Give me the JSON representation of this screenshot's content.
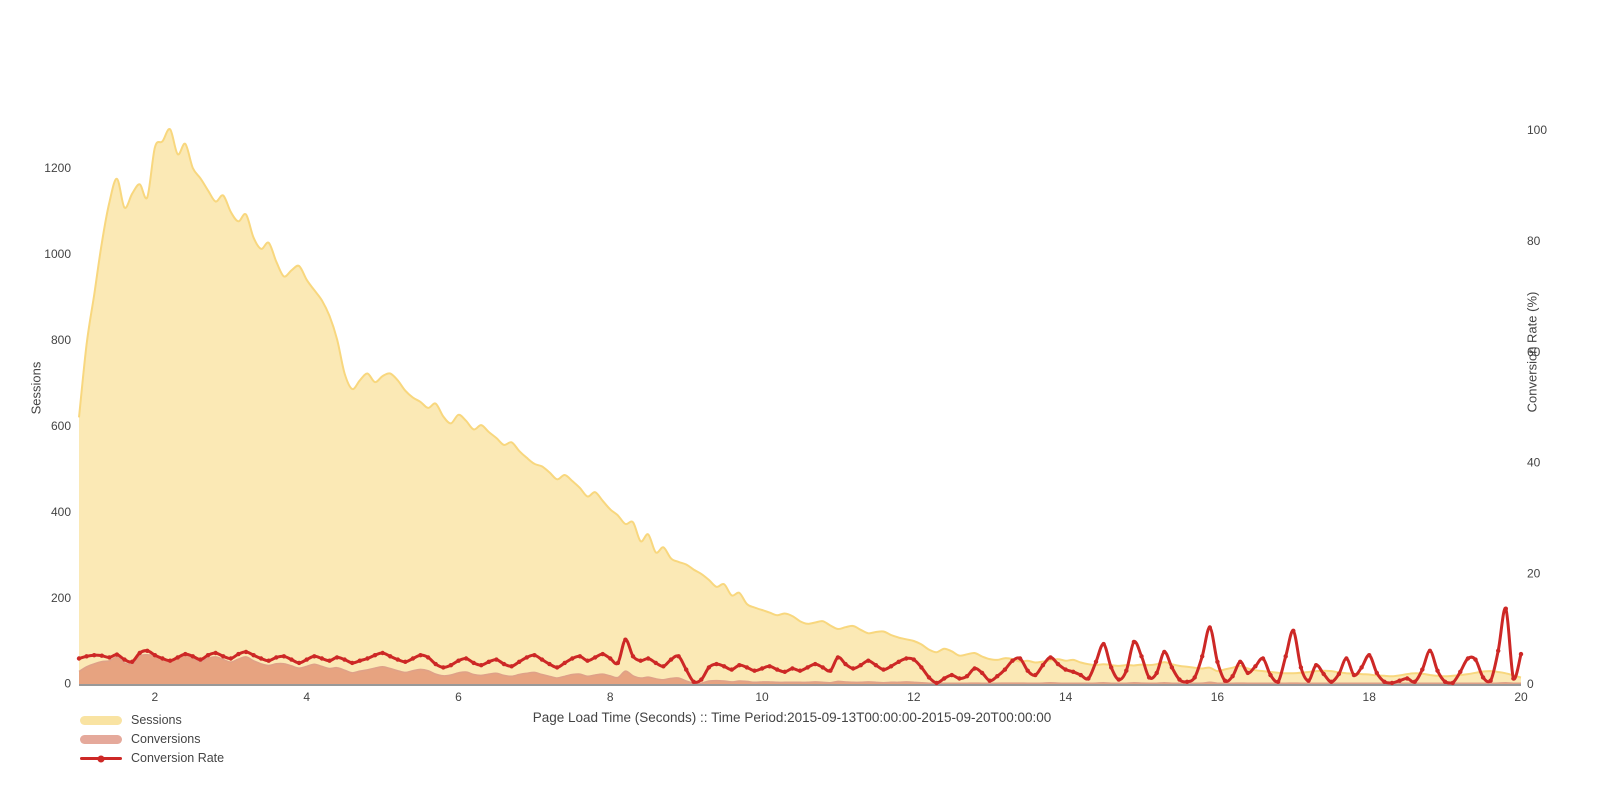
{
  "chart_data": {
    "type": "area",
    "title": "",
    "xlabel": "Page Load Time (Seconds) :: Time Period:2015-09-13T00:00:00-2015-09-20T00:00:00",
    "ylabel_left": "Sessions",
    "ylabel_right": "Conversion Rate (%)",
    "x_range": [
      1,
      20
    ],
    "x_start": 1.0,
    "x_step": 0.1,
    "x_ticks": [
      2,
      4,
      6,
      8,
      10,
      12,
      14,
      16,
      18,
      20
    ],
    "y_left_ticks": [
      0,
      200,
      400,
      600,
      800,
      1000,
      1200
    ],
    "y_right_ticks": [
      0,
      20,
      40,
      60,
      80,
      100
    ],
    "grid": false,
    "legend_position": "bottom-left",
    "colors": {
      "axis_line": "#999999",
      "tick_text": "#444444",
      "title_text": "#444444"
    },
    "series": [
      {
        "name": "Sessions",
        "type": "area",
        "axis": "left",
        "line_color": "#f8d77e",
        "fill_color": "rgba(247,206,92,0.45)",
        "swatch": "#f9e3a2",
        "values": [
          620,
          790,
          905,
          1025,
          1120,
          1175,
          1108,
          1140,
          1162,
          1132,
          1248,
          1262,
          1290,
          1232,
          1256,
          1200,
          1176,
          1148,
          1122,
          1136,
          1098,
          1076,
          1092,
          1038,
          1012,
          1026,
          982,
          948,
          962,
          972,
          940,
          916,
          892,
          856,
          802,
          722,
          686,
          706,
          722,
          702,
          716,
          722,
          706,
          682,
          666,
          656,
          642,
          652,
          622,
          606,
          626,
          612,
          592,
          602,
          586,
          572,
          556,
          562,
          542,
          526,
          512,
          506,
          492,
          476,
          486,
          472,
          456,
          436,
          446,
          426,
          406,
          392,
          372,
          376,
          332,
          348,
          306,
          318,
          292,
          284,
          278,
          266,
          256,
          242,
          226,
          232,
          206,
          212,
          186,
          178,
          172,
          166,
          160,
          164,
          158,
          146,
          140,
          143,
          146,
          136,
          128,
          132,
          135,
          126,
          118,
          121,
          122,
          114,
          108,
          104,
          100,
          92,
          80,
          74,
          82,
          76,
          66,
          69,
          72,
          64,
          58,
          56,
          60,
          58,
          52,
          54,
          50,
          52,
          55,
          58,
          54,
          56,
          50,
          46,
          44,
          46,
          44,
          42,
          44,
          43,
          45,
          44,
          46,
          51,
          46,
          42,
          40,
          38,
          36,
          38,
          30,
          34,
          38,
          42,
          36,
          32,
          30,
          28,
          26,
          25,
          25,
          26,
          28,
          30,
          31,
          30,
          27,
          25,
          24,
          23,
          22,
          20,
          19,
          18,
          20,
          23,
          25,
          24,
          21,
          19,
          18,
          19,
          21,
          23,
          26,
          29,
          30,
          28,
          25,
          20,
          15
        ]
      },
      {
        "name": "Conversions",
        "type": "area",
        "axis": "left",
        "line_color": "#dfa188",
        "fill_color": "rgba(211,94,75,0.5)",
        "swatch": "#e5a99b",
        "values": [
          29,
          40,
          47,
          52,
          54,
          62,
          49,
          46,
          65,
          68,
          65,
          58,
          54,
          59,
          68,
          60,
          52,
          60,
          63,
          57,
          51,
          58,
          63,
          54,
          47,
          43,
          47,
          47,
          42,
          37,
          41,
          46,
          41,
          36,
          38,
          32,
          26,
          30,
          33,
          37,
          40,
          36,
          31,
          27,
          31,
          34,
          31,
          23,
          19,
          21,
          26,
          28,
          22,
          20,
          23,
          25,
          20,
          18,
          22,
          25,
          27,
          22,
          18,
          14,
          18,
          22,
          23,
          18,
          21,
          23,
          19,
          15,
          30,
          19,
          14,
          16,
          12,
          10,
          13,
          14,
          7,
          1,
          2,
          7,
          8,
          7,
          5,
          7,
          6,
          4,
          5,
          5,
          4,
          4,
          4,
          4,
          4,
          5,
          4,
          3,
          6,
          5,
          4,
          4,
          5,
          4,
          3,
          4,
          4,
          5,
          4,
          3,
          1,
          0,
          1,
          1,
          1,
          1,
          2,
          1,
          0,
          1,
          2,
          2,
          2,
          1,
          1,
          2,
          3,
          2,
          1,
          1,
          1,
          0,
          2,
          3,
          1,
          0,
          1,
          3,
          2,
          1,
          1,
          3,
          1,
          0,
          0,
          0,
          2,
          4,
          1,
          0,
          1,
          2,
          1,
          1,
          1,
          0,
          0,
          1,
          2,
          1,
          0,
          1,
          1,
          0,
          0,
          1,
          0,
          1,
          1,
          0,
          0,
          0,
          0,
          0,
          0,
          1,
          1,
          0,
          0,
          0,
          0,
          1,
          1,
          0,
          0,
          2,
          3,
          0,
          1
        ]
      },
      {
        "name": "Conversion Rate",
        "type": "line+markers",
        "axis": "right",
        "line_color": "#cd2826",
        "fill_color": "none",
        "swatch": "#cd2826",
        "values": [
          4.6,
          5.0,
          5.2,
          5.1,
          4.8,
          5.3,
          4.4,
          4.0,
          5.6,
          6.0,
          5.2,
          4.6,
          4.2,
          4.8,
          5.4,
          5.0,
          4.4,
          5.2,
          5.6,
          5.0,
          4.6,
          5.4,
          5.8,
          5.2,
          4.6,
          4.2,
          4.8,
          5.0,
          4.4,
          3.8,
          4.4,
          5.0,
          4.6,
          4.2,
          4.8,
          4.4,
          3.8,
          4.2,
          4.6,
          5.2,
          5.6,
          5.0,
          4.4,
          4.0,
          4.6,
          5.2,
          4.8,
          3.6,
          3.0,
          3.4,
          4.2,
          4.6,
          3.8,
          3.4,
          4.0,
          4.4,
          3.6,
          3.2,
          4.0,
          4.8,
          5.2,
          4.4,
          3.6,
          3.0,
          3.8,
          4.6,
          5.0,
          4.2,
          4.8,
          5.4,
          4.6,
          3.8,
          8.0,
          5.0,
          4.2,
          4.6,
          3.8,
          3.2,
          4.4,
          5.0,
          2.6,
          0.4,
          0.8,
          3.0,
          3.6,
          3.2,
          2.6,
          3.4,
          3.0,
          2.4,
          2.8,
          3.2,
          2.6,
          2.2,
          2.8,
          2.4,
          3.0,
          3.6,
          3.0,
          2.4,
          4.8,
          3.6,
          2.8,
          3.4,
          4.2,
          3.4,
          2.6,
          3.2,
          4.0,
          4.6,
          4.4,
          3.0,
          1.2,
          0.2,
          1.0,
          1.6,
          1.0,
          1.4,
          2.8,
          2.0,
          0.6,
          1.4,
          2.6,
          4.2,
          4.6,
          2.4,
          1.6,
          3.4,
          4.8,
          3.6,
          2.6,
          2.2,
          1.6,
          1.0,
          4.0,
          7.2,
          3.0,
          0.8,
          2.4,
          7.6,
          5.0,
          1.2,
          2.0,
          5.8,
          3.0,
          0.8,
          0.4,
          1.2,
          5.0,
          10.2,
          4.0,
          0.6,
          1.4,
          4.0,
          2.0,
          3.2,
          4.6,
          1.6,
          0.4,
          5.0,
          9.6,
          3.0,
          0.6,
          3.4,
          1.8,
          0.4,
          1.8,
          4.6,
          1.6,
          3.0,
          5.2,
          2.0,
          0.4,
          0.2,
          0.6,
          1.0,
          0.4,
          2.6,
          6.0,
          2.4,
          0.4,
          0.2,
          2.2,
          4.6,
          4.4,
          1.2,
          0.6,
          6.0,
          13.6,
          1.0,
          5.4
        ]
      }
    ]
  }
}
